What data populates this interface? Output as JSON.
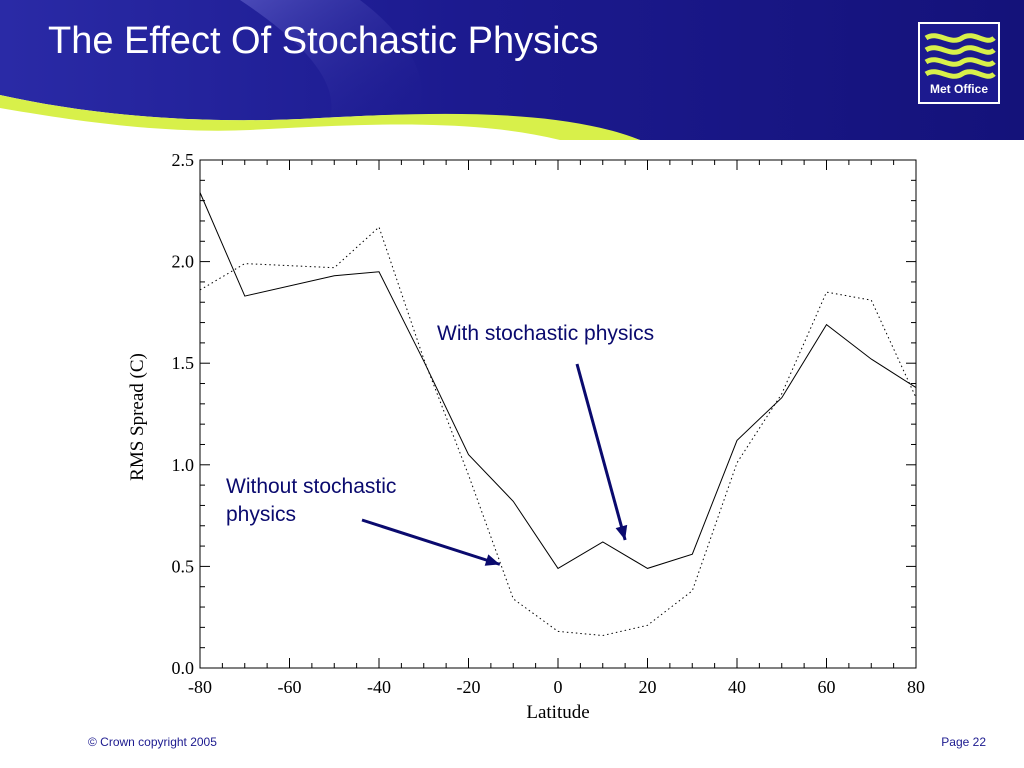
{
  "slide": {
    "title": "The Effect Of Stochastic Physics",
    "logo_text": "Met Office",
    "footer_left": "© Crown copyright 2005",
    "footer_right": "Page 22"
  },
  "colors": {
    "header_blue": "#1c1a8f",
    "accent_green": "#d8f04a",
    "annotation_text": "#0a0a6e",
    "arrow": "#0a0a6e"
  },
  "chart_data": {
    "type": "line",
    "xlabel": "Latitude",
    "ylabel": "RMS Spread (C)",
    "xlim": [
      -80,
      80
    ],
    "ylim": [
      0.0,
      2.5
    ],
    "xticks": [
      "-80",
      "-60",
      "-40",
      "-20",
      "0",
      "20",
      "40",
      "60",
      "80"
    ],
    "yticks": [
      "0.0",
      "0.5",
      "1.0",
      "1.5",
      "2.0",
      "2.5"
    ],
    "grid": false,
    "series": [
      {
        "style": "solid",
        "x": [
          -80,
          -70,
          -50,
          -40,
          -30,
          -20,
          -10,
          0,
          10,
          20,
          30,
          40,
          50,
          60,
          70,
          80
        ],
        "y": [
          2.34,
          1.83,
          1.93,
          1.95,
          1.51,
          1.05,
          0.82,
          0.49,
          0.62,
          0.49,
          0.56,
          1.12,
          1.33,
          1.69,
          1.52,
          1.38
        ]
      },
      {
        "style": "dotted",
        "x": [
          -80,
          -70,
          -50,
          -40,
          -30,
          -20,
          -10,
          0,
          10,
          20,
          30,
          40,
          50,
          60,
          70,
          80
        ],
        "y": [
          1.86,
          1.99,
          1.97,
          2.17,
          1.52,
          0.95,
          0.34,
          0.18,
          0.16,
          0.21,
          0.38,
          1.01,
          1.35,
          1.85,
          1.81,
          1.33
        ]
      }
    ],
    "annotations": [
      {
        "text": "With stochastic physics",
        "points_to_series": 0,
        "target_x": 15,
        "target_y": 0.63
      },
      {
        "text": "Without stochastic physics",
        "points_to_series": 1,
        "target_x": -13,
        "target_y": 0.51
      }
    ]
  }
}
